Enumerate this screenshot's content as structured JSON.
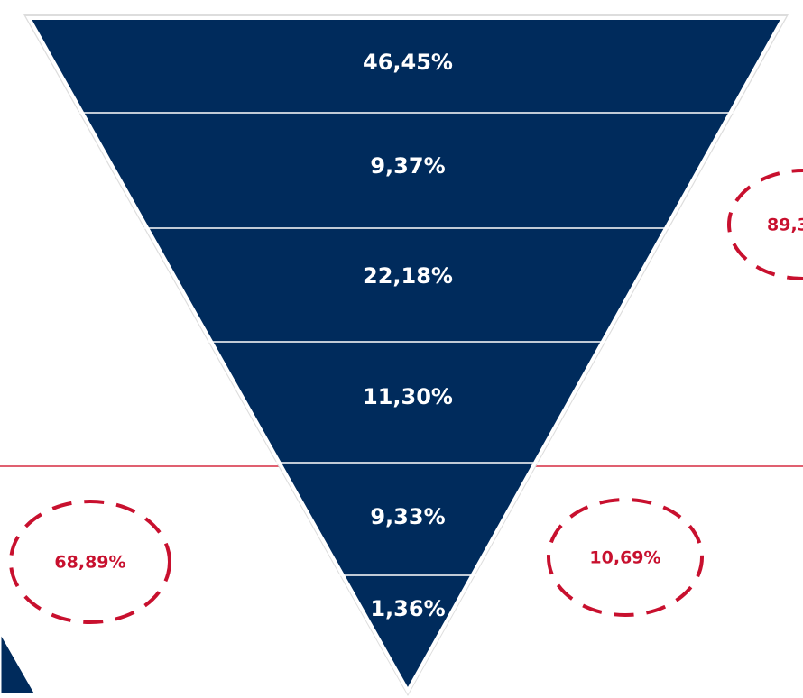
{
  "segments": [
    {
      "label": "46,45%"
    },
    {
      "label": "9,37%"
    },
    {
      "label": "22,18%"
    },
    {
      "label": "11,30%"
    },
    {
      "label": "9,33%"
    },
    {
      "label": "1,36%"
    }
  ],
  "callouts": [
    {
      "label": "68,89%"
    },
    {
      "label": "10,69%"
    },
    {
      "label": "89,3"
    }
  ]
}
